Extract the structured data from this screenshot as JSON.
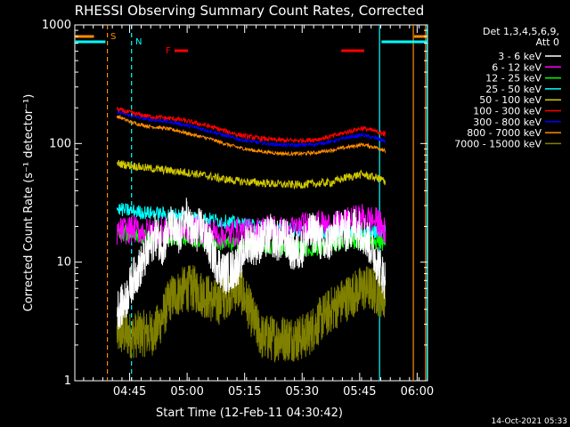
{
  "chart_data": {
    "type": "line",
    "title": "RHESSI Observing Summary Count Rates, Corrected",
    "xlabel": "Start Time (12-Feb-11 04:30:42)",
    "ylabel": "Corrected Count Rate (s⁻¹ detector⁻¹)",
    "yscale": "log",
    "ylim": [
      1,
      1000
    ],
    "y_ticks": [
      {
        "value": 1,
        "label": "1"
      },
      {
        "value": 10,
        "label": "10"
      },
      {
        "value": 100,
        "label": "100"
      },
      {
        "value": 1000,
        "label": "1000"
      }
    ],
    "xlim_minutes": [
      0,
      92
    ],
    "x_ticks": [
      {
        "minute": 14.3,
        "label": "04:45"
      },
      {
        "minute": 29.3,
        "label": "05:00"
      },
      {
        "minute": 44.3,
        "label": "05:15"
      },
      {
        "minute": 59.3,
        "label": "05:30"
      },
      {
        "minute": 74.3,
        "label": "05:45"
      },
      {
        "minute": 89.3,
        "label": "06:00"
      }
    ],
    "legend_header": [
      "Det 1,3,4,5,6,9,",
      "Att 0"
    ],
    "series": [
      {
        "name": "3 - 6 keV",
        "color": "#ffffff",
        "x": [
          11,
          13,
          15,
          17,
          19,
          21,
          23,
          25,
          27,
          29,
          31,
          33,
          35,
          37,
          39,
          41,
          43,
          45,
          47,
          49,
          51,
          53,
          55,
          57,
          59,
          61,
          63,
          65,
          67,
          69,
          71,
          73,
          75,
          77,
          79,
          81
        ],
        "values": [
          4,
          4.5,
          7,
          9,
          12,
          17,
          14,
          20,
          16,
          24,
          17,
          20,
          14,
          10,
          8,
          8.5,
          10,
          15,
          14,
          15,
          17,
          15,
          16,
          12,
          13,
          17,
          18,
          13,
          16,
          19,
          18,
          20,
          18,
          14,
          10,
          7
        ]
      },
      {
        "name": "6 - 12 keV",
        "color": "#ff00ff",
        "x": [
          11,
          15,
          19,
          23,
          27,
          31,
          35,
          39,
          43,
          47,
          51,
          55,
          59,
          63,
          67,
          71,
          75,
          79,
          81
        ],
        "values": [
          18,
          19,
          18,
          19,
          18,
          19,
          18,
          17,
          18,
          18,
          20,
          18,
          20,
          21,
          20,
          22,
          24,
          22,
          18
        ]
      },
      {
        "name": "12 - 25 keV",
        "color": "#00ff00",
        "x": [
          11,
          15,
          19,
          23,
          27,
          31,
          35,
          39,
          43,
          47,
          51,
          55,
          59,
          63,
          67,
          71,
          75,
          79,
          81
        ],
        "values": [
          18,
          17,
          16.5,
          16,
          16,
          15.5,
          15,
          14.5,
          14,
          14,
          13.5,
          13,
          13,
          13,
          14,
          15,
          15,
          15,
          14
        ]
      },
      {
        "name": "25 - 50 keV",
        "color": "#00ffff",
        "x": [
          11,
          15,
          19,
          23,
          27,
          31,
          35,
          39,
          43,
          47,
          51,
          55,
          59,
          63,
          67,
          71,
          75,
          79,
          81
        ],
        "values": [
          28,
          27,
          26,
          25.5,
          25,
          24,
          23,
          22,
          21,
          20,
          19.5,
          19,
          18.5,
          18,
          18,
          18,
          18,
          18,
          18
        ]
      },
      {
        "name": "50 - 100 keV",
        "color": "#d2c800",
        "x": [
          11,
          15,
          19,
          23,
          27,
          31,
          35,
          39,
          43,
          47,
          51,
          55,
          59,
          63,
          67,
          71,
          75,
          79,
          81
        ],
        "values": [
          68,
          65,
          62,
          60,
          58,
          56,
          53,
          50,
          48,
          47,
          46,
          45,
          45,
          46,
          47,
          52,
          55,
          51,
          48
        ]
      },
      {
        "name": "100 - 300 keV",
        "color": "#ff0000",
        "x": [
          11,
          15,
          19,
          23,
          27,
          31,
          35,
          39,
          43,
          47,
          51,
          55,
          59,
          63,
          67,
          71,
          75,
          79,
          81
        ],
        "values": [
          195,
          180,
          170,
          165,
          160,
          150,
          140,
          128,
          118,
          112,
          108,
          106,
          106,
          108,
          115,
          125,
          135,
          125,
          120
        ]
      },
      {
        "name": "300 - 800 keV",
        "color": "#0000ff",
        "x": [
          11,
          15,
          19,
          23,
          27,
          31,
          35,
          39,
          43,
          47,
          51,
          55,
          59,
          63,
          67,
          71,
          75,
          79,
          81
        ],
        "values": [
          185,
          170,
          160,
          155,
          148,
          138,
          128,
          117,
          108,
          103,
          99,
          97,
          97,
          99,
          104,
          112,
          118,
          110,
          104
        ]
      },
      {
        "name": "800 - 7000 keV",
        "color": "#ff8c00",
        "x": [
          11,
          15,
          19,
          23,
          27,
          31,
          35,
          39,
          43,
          47,
          51,
          55,
          59,
          63,
          67,
          71,
          75,
          79,
          81
        ],
        "values": [
          170,
          150,
          140,
          135,
          128,
          118,
          110,
          100,
          92,
          87,
          84,
          82,
          82,
          84,
          88,
          93,
          98,
          92,
          86
        ]
      },
      {
        "name": "7000 - 15000 keV",
        "color": "#808000",
        "x": [
          11,
          13,
          15,
          17,
          19,
          21,
          23,
          25,
          27,
          29,
          31,
          33,
          35,
          37,
          39,
          41,
          43,
          45,
          47,
          49,
          51,
          53,
          55,
          57,
          59,
          61,
          63,
          65,
          67,
          69,
          71,
          73,
          75,
          77,
          79,
          81
        ],
        "values": [
          2.5,
          2.5,
          2.4,
          2.5,
          2.5,
          2.6,
          3.5,
          5,
          5.5,
          6,
          6,
          5.5,
          5,
          4.5,
          5,
          6,
          6,
          4.5,
          3,
          2.3,
          2.3,
          2.3,
          2.3,
          2.3,
          2.3,
          2.5,
          3,
          3.5,
          4,
          4.5,
          5,
          5.5,
          6,
          6,
          5.5,
          5
        ]
      }
    ],
    "event_bars": [
      {
        "label": "S",
        "color": "#ff8c00"
      },
      {
        "label": "N",
        "color": "#00ffff"
      },
      {
        "label": "F",
        "color": "#ff0000"
      }
    ],
    "footer_date": "14-Oct-2021 05:33"
  }
}
